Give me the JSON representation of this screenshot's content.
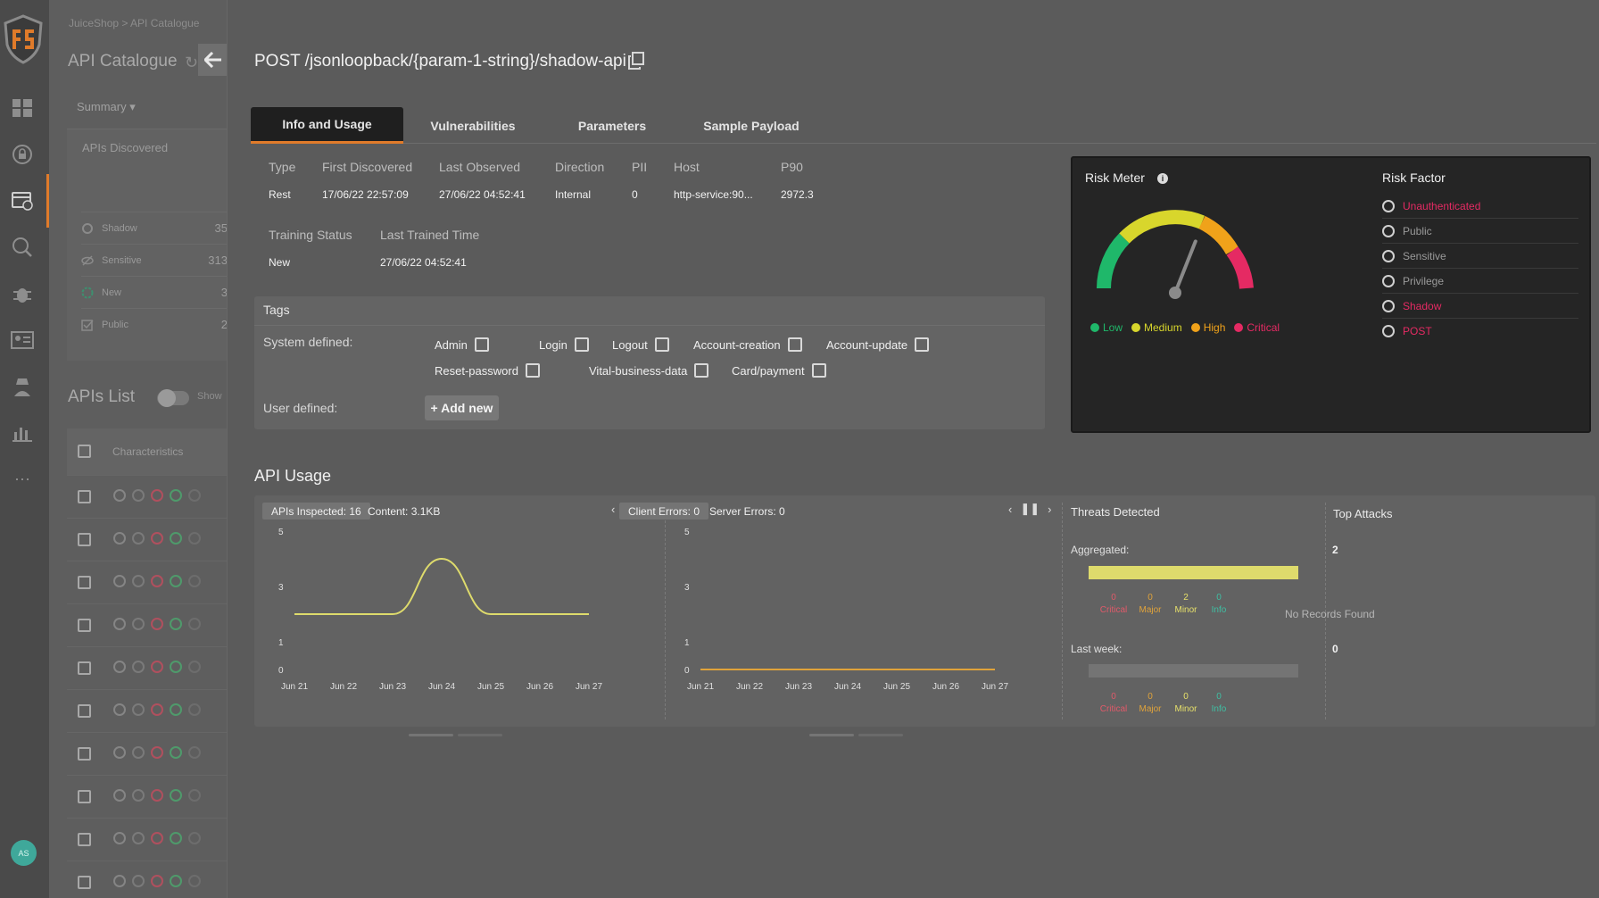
{
  "breadcrumb": "JuiceShop > API Catalogue",
  "catalogue": {
    "title": "API Catalogue",
    "summary_label": "Summary",
    "apis_discovered_label": "APIs Discovered",
    "summary_rows": [
      {
        "label": "Shadow",
        "count": "35"
      },
      {
        "label": "Sensitive",
        "count": "313"
      },
      {
        "label": "New",
        "count": "3"
      },
      {
        "label": "Public",
        "count": "2"
      }
    ],
    "apis_list_title": "APIs List",
    "show_label": "Show",
    "characteristics_header": "Characteristics"
  },
  "user_initials": "AS",
  "api": {
    "title": "POST /jsonloopback/{param-1-string}/shadow-api"
  },
  "tabs": [
    "Info and Usage",
    "Vulnerabilities",
    "Parameters",
    "Sample Payload"
  ],
  "info": {
    "headers": [
      "Type",
      "First Discovered",
      "Last Observed",
      "Direction",
      "PII",
      "Host",
      "P90"
    ],
    "values": [
      "Rest",
      "17/06/22 22:57:09",
      "27/06/22 04:52:41",
      "Internal",
      "0",
      "http-service:90...",
      "2972.3"
    ],
    "training_headers": [
      "Training Status",
      "Last Trained Time"
    ],
    "training_values": [
      "New",
      "27/06/22 04:52:41"
    ]
  },
  "tags": {
    "title": "Tags",
    "system_label": "System defined:",
    "user_label": "User defined:",
    "add_new": "+ Add new",
    "system_tags": [
      "Admin",
      "Login",
      "Logout",
      "Account-creation",
      "Account-update",
      "Reset-password",
      "Vital-business-data",
      "Card/payment"
    ]
  },
  "risk_meter": {
    "title": "Risk Meter",
    "legend": [
      {
        "label": "Low",
        "color": "#1fb86a"
      },
      {
        "label": "Medium",
        "color": "#d8d62c"
      },
      {
        "label": "High",
        "color": "#f0a21a"
      },
      {
        "label": "Critical",
        "color": "#e52a63"
      }
    ],
    "level_fraction": 0.62
  },
  "risk_factor": {
    "title": "Risk Factor",
    "items": [
      {
        "label": "Unauthenticated",
        "active": true,
        "icon": "user-lock-icon"
      },
      {
        "label": "Public",
        "active": false,
        "icon": "public-check-icon"
      },
      {
        "label": "Sensitive",
        "active": false,
        "icon": "user-icon"
      },
      {
        "label": "Privilege",
        "active": false,
        "icon": "crown-icon"
      },
      {
        "label": "Shadow",
        "active": true,
        "icon": "shadow-circle-icon"
      },
      {
        "label": "POST",
        "active": true,
        "icon": "cloud-upload-icon"
      }
    ],
    "active_color": "#e52a63",
    "inactive_color": "#9a9a9a"
  },
  "usage": {
    "title": "API Usage",
    "chart1_pills": [
      "APIs Inspected: 16",
      "Content: 3.1KB"
    ],
    "chart2_pills": [
      "Client Errors: 0",
      "Server Errors: 0"
    ],
    "threats_title": "Threats Detected",
    "aggregated_label": "Aggregated:",
    "aggregated_total": "2",
    "last_week_label": "Last week:",
    "last_week_total": "0",
    "severity_labels": [
      "Critical",
      "Major",
      "Minor",
      "Info"
    ],
    "aggregated_counts": [
      "0",
      "0",
      "2",
      "0"
    ],
    "last_week_counts": [
      "0",
      "0",
      "0",
      "0"
    ],
    "severity_colors": [
      "#e05a6a",
      "#e0a33a",
      "#e6e06a",
      "#3fbfa3"
    ],
    "top_attacks_title": "Top Attacks",
    "no_records": "No Records Found"
  },
  "chart_data": [
    {
      "type": "line",
      "title": "APIs Inspected: 16",
      "x": [
        "Jun 21",
        "Jun 22",
        "Jun 23",
        "Jun 24",
        "Jun 25",
        "Jun 26",
        "Jun 27"
      ],
      "y_ticks": [
        "5",
        "3",
        "1",
        "0"
      ],
      "ylim": [
        0,
        5
      ],
      "series": [
        {
          "color": "#dedb6c",
          "values": [
            2,
            2,
            2,
            4,
            2,
            2,
            2
          ]
        }
      ]
    },
    {
      "type": "line",
      "title": "Client Errors: 0",
      "x": [
        "Jun 21",
        "Jun 22",
        "Jun 23",
        "Jun 24",
        "Jun 25",
        "Jun 26",
        "Jun 27"
      ],
      "y_ticks": [
        "5",
        "3",
        "1",
        "0"
      ],
      "ylim": [
        0,
        5
      ],
      "series": [
        {
          "color": "#e0a33a",
          "values": [
            0,
            0,
            0,
            0,
            0,
            0,
            0
          ]
        }
      ]
    }
  ]
}
